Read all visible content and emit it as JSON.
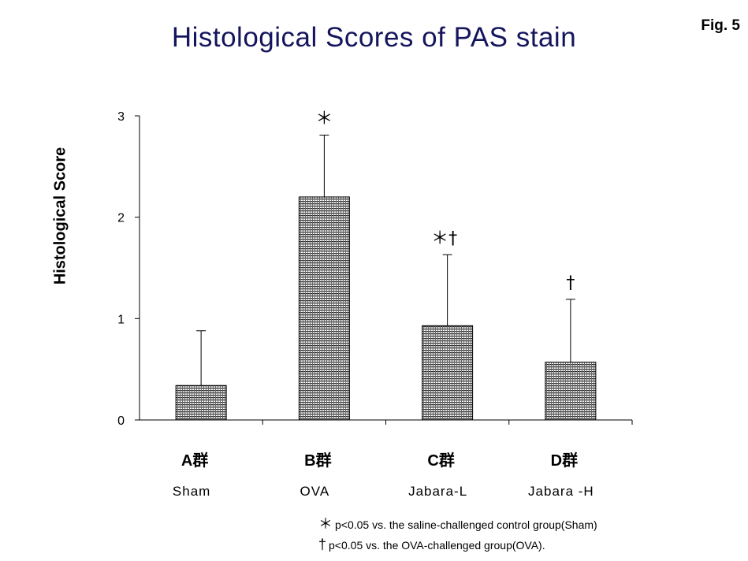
{
  "header": {
    "title": "Histological Scores of PAS stain",
    "fig_label": "Fig. 5"
  },
  "chart_data": {
    "type": "bar",
    "title": "Histological Scores of PAS stain",
    "ylabel": "Histological Score",
    "xlabel": "",
    "ylim": [
      0,
      3
    ],
    "yticks": [
      "0",
      "1",
      "2",
      "3"
    ],
    "categories": [
      "A群",
      "B群",
      "C群",
      "D群"
    ],
    "subcategories": [
      "Sham",
      "OVA",
      "Jabara-L",
      "Jabara -H"
    ],
    "values": [
      0.34,
      2.2,
      0.93,
      0.57
    ],
    "errors": [
      0.54,
      0.61,
      0.7,
      0.62
    ],
    "significance": [
      "",
      "＊",
      "＊†",
      "†"
    ],
    "grid": false,
    "bar_pattern": "dense-hatch"
  },
  "footnotes": [
    {
      "mark": "＊",
      "text": "p<0.05 vs. the saline-challenged control group(Sham)"
    },
    {
      "mark": "†",
      "text": "p<0.05 vs. the OVA-challenged group(OVA)."
    }
  ]
}
